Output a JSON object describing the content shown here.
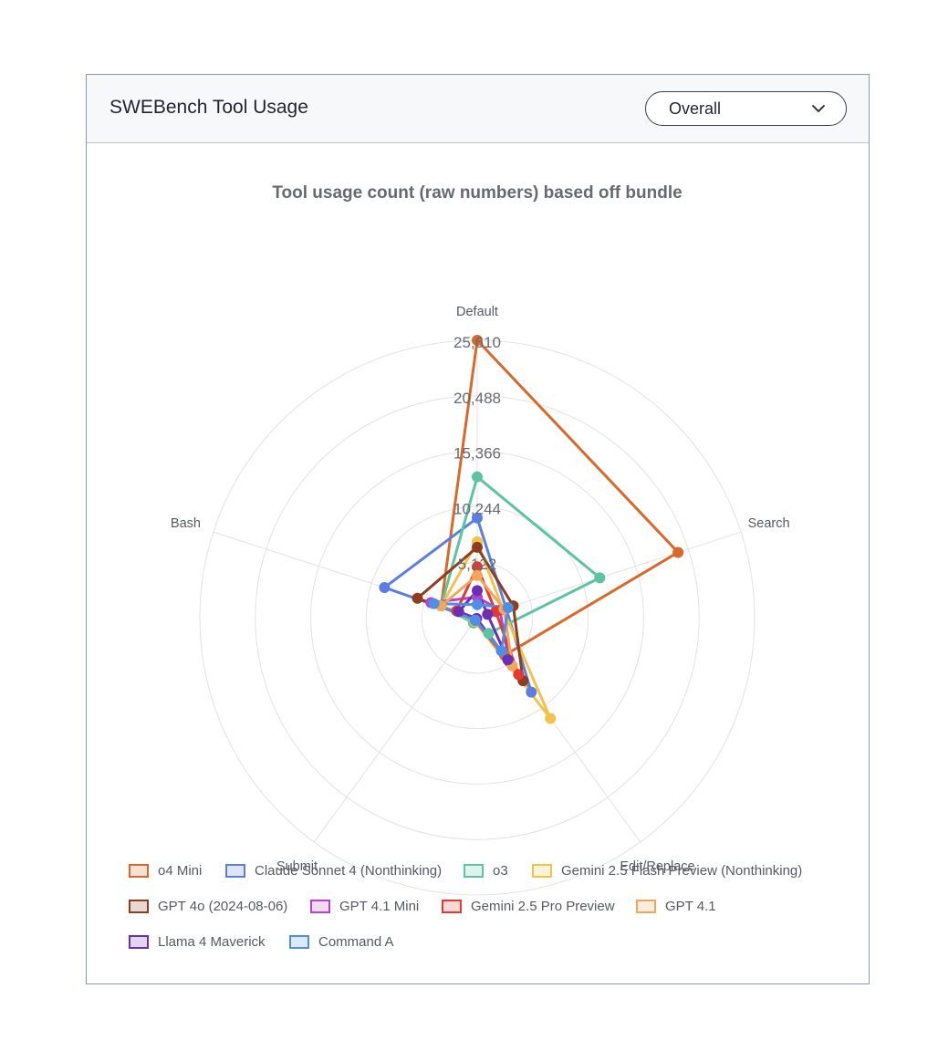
{
  "card": {
    "title": "SWEBench Tool Usage",
    "dropdown": {
      "selected": "Overall",
      "icon": "chevron-down-icon"
    }
  },
  "chart_data": {
    "type": "radar",
    "title": "Tool usage count (raw numbers) based off bundle",
    "axes": [
      "Default",
      "Search",
      "Edit/Replace",
      "Submit",
      "Bash"
    ],
    "max": 25610,
    "ticks": [
      "5,122",
      "10,244",
      "15,366",
      "20,488",
      "25,610"
    ],
    "tick_values": [
      5122,
      10244,
      15366,
      20488,
      25610
    ],
    "legend_position": "bottom",
    "series": [
      {
        "name": "o4 Mini",
        "color": "#d9692a",
        "values": [
          25610,
          19500,
          4300,
          300,
          3500
        ]
      },
      {
        "name": "Claude Sonnet 4 (Nonthinking)",
        "color": "#5a7fe0",
        "values": [
          9200,
          2800,
          8500,
          200,
          9000
        ]
      },
      {
        "name": "o3",
        "color": "#5cc4a0",
        "values": [
          13000,
          11900,
          1800,
          600,
          3500
        ]
      },
      {
        "name": "Gemini 2.5 Flash Preview (Nonthinking)",
        "color": "#f2c24a",
        "values": [
          7000,
          2500,
          11500,
          400,
          3500
        ]
      },
      {
        "name": "GPT 4o (2024-08-06)",
        "color": "#8e3e1e",
        "values": [
          6500,
          3500,
          7200,
          200,
          5800
        ]
      },
      {
        "name": "GPT 4.1 Mini",
        "color": "#b545c8",
        "values": [
          1900,
          2200,
          5000,
          100,
          4500
        ]
      },
      {
        "name": "Gemini 2.5 Pro Preview",
        "color": "#e03a33",
        "values": [
          4700,
          1800,
          6500,
          300,
          2000
        ]
      },
      {
        "name": "GPT 4.1",
        "color": "#f2a65a",
        "values": [
          3900,
          2600,
          5500,
          200,
          3500
        ]
      },
      {
        "name": "Llama 4 Maverick",
        "color": "#6a2fb5",
        "values": [
          2500,
          1000,
          4800,
          100,
          1800
        ]
      },
      {
        "name": "Command A",
        "color": "#4d8fe6",
        "values": [
          1200,
          3000,
          3800,
          300,
          4200
        ]
      }
    ]
  }
}
